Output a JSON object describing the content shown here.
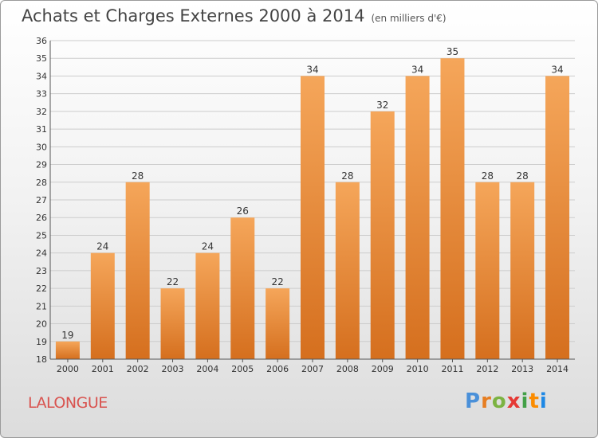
{
  "header": {
    "title": "Achats et Charges Externes 2000 à 2014",
    "unit": "(en milliers d'€)"
  },
  "footer": {
    "place": "LALONGUE",
    "logo": "Proxiti"
  },
  "colors": {
    "bar_light": "#f5a65a",
    "bar_dark": "#d56f1e",
    "grid": "#cccccc",
    "place_text": "#d9534f"
  },
  "chart_data": {
    "type": "bar",
    "title": "Achats et Charges Externes 2000 à 2014",
    "subtitle": "(en milliers d'€)",
    "categories": [
      "2000",
      "2001",
      "2002",
      "2003",
      "2004",
      "2005",
      "2006",
      "2007",
      "2008",
      "2009",
      "2010",
      "2011",
      "2012",
      "2013",
      "2014"
    ],
    "values": [
      19,
      24,
      28,
      22,
      24,
      26,
      22,
      34,
      28,
      32,
      34,
      35,
      28,
      28,
      34
    ],
    "ylim": [
      18,
      36
    ],
    "ytick_step": 1,
    "grid": true,
    "data_labels": true
  }
}
